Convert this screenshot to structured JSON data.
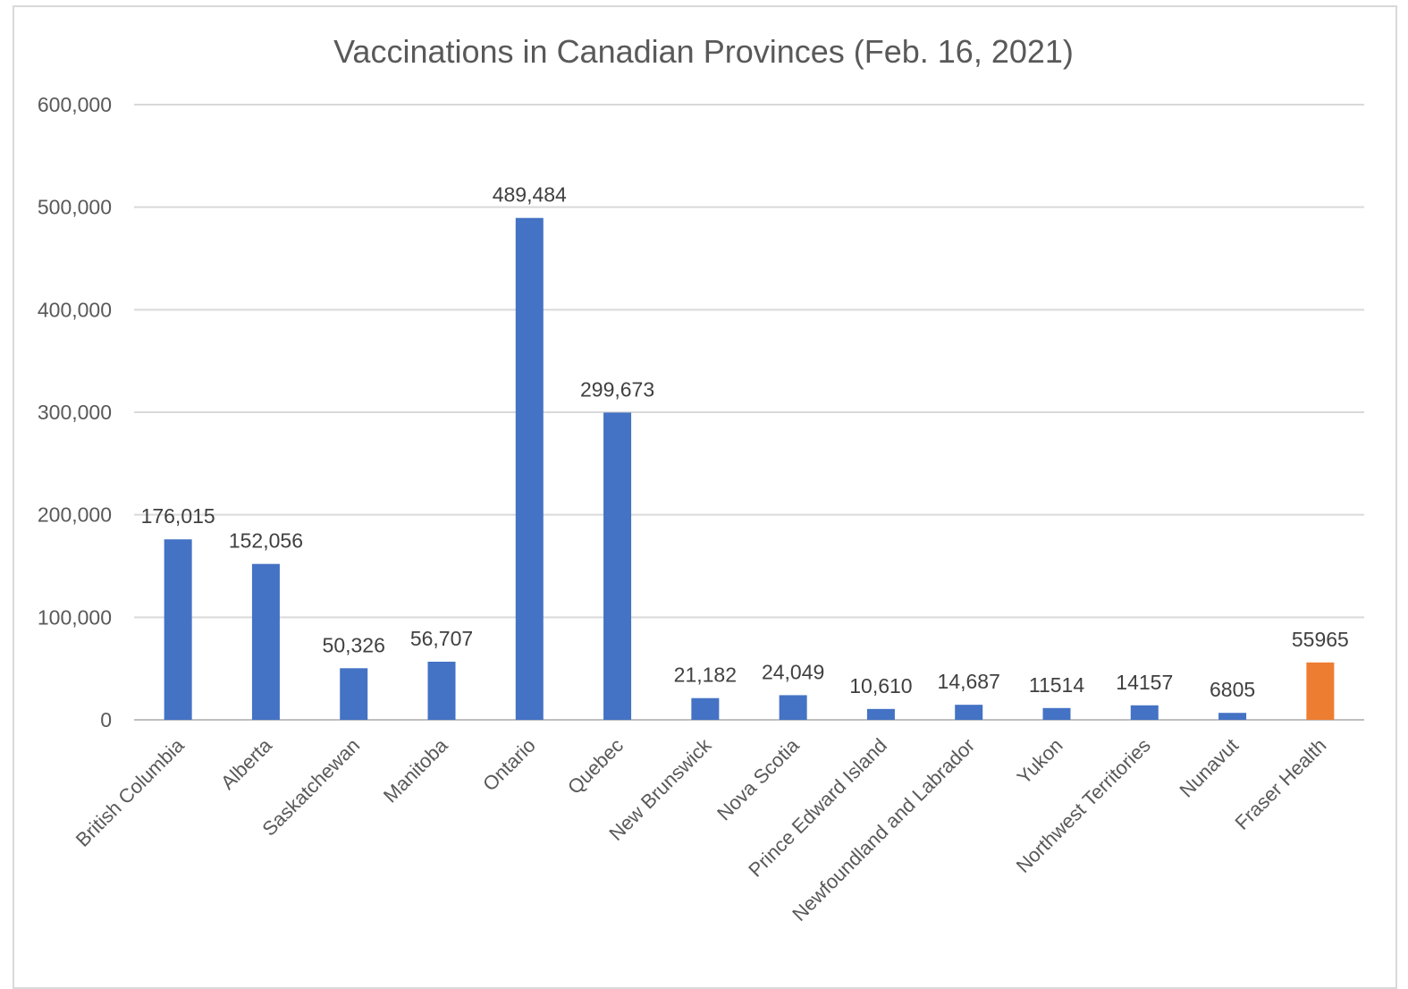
{
  "chart_data": {
    "type": "bar",
    "title": "Vaccinations in Canadian Provinces (Feb. 16, 2021)",
    "xlabel": "",
    "ylabel": "",
    "ylim": [
      0,
      600000
    ],
    "yticks": [
      0,
      100000,
      200000,
      300000,
      400000,
      500000,
      600000
    ],
    "ytick_labels": [
      "0",
      "100,000",
      "200,000",
      "300,000",
      "400,000",
      "500,000",
      "600,000"
    ],
    "grid": true,
    "categories": [
      "British Columbia",
      "Alberta",
      "Saskatchewan",
      "Manitoba",
      "Ontario",
      "Quebec",
      "New Brunswick",
      "Nova Scotia",
      "Prince Edward Island",
      "Newfoundland and Labrador",
      "Yukon",
      "Northwest Territories",
      "Nunavut",
      "Fraser Health"
    ],
    "values": [
      176015,
      152056,
      50326,
      56707,
      489484,
      299673,
      21182,
      24049,
      10610,
      14687,
      11514,
      14157,
      6805,
      55965
    ],
    "data_labels": [
      "176,015",
      "152,056",
      "50,326",
      "56,707",
      "489,484",
      "299,673",
      "21,182",
      "24,049",
      "10,610",
      "14,687",
      "11514",
      "14157",
      "6805",
      "55965"
    ],
    "bar_colors": [
      "#4472c4",
      "#4472c4",
      "#4472c4",
      "#4472c4",
      "#4472c4",
      "#4472c4",
      "#4472c4",
      "#4472c4",
      "#4472c4",
      "#4472c4",
      "#4472c4",
      "#4472c4",
      "#4472c4",
      "#ed7d31"
    ]
  }
}
